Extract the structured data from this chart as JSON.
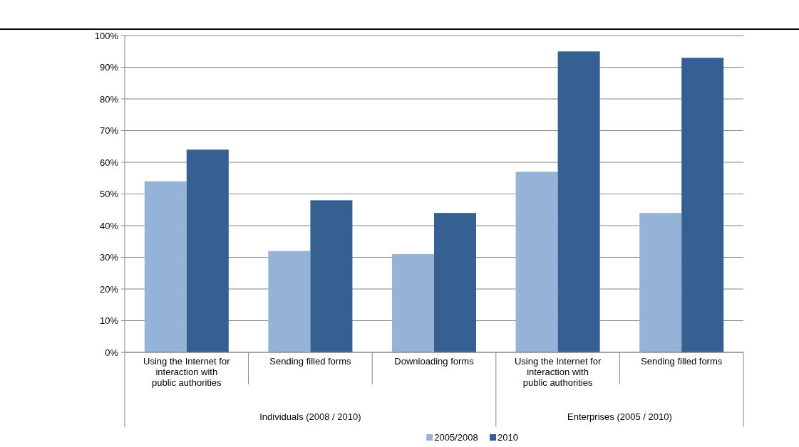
{
  "chart_data": {
    "type": "bar",
    "categories": [
      "Using the Internet for interaction with public authorities",
      "Sending filled forms",
      "Downloading forms",
      "Using the Internet for interaction with public authorities",
      "Sending filled forms"
    ],
    "series": [
      {
        "name": "2005/2008",
        "color": "#95b3d7",
        "values": [
          54,
          32,
          31,
          57,
          44
        ]
      },
      {
        "name": "2010",
        "color": "#366092",
        "values": [
          64,
          48,
          44,
          95,
          93
        ]
      }
    ],
    "ylim": [
      0,
      100
    ],
    "yticks": [
      {
        "value": 0,
        "label": "0%"
      },
      {
        "value": 10,
        "label": "10%"
      },
      {
        "value": 20,
        "label": "20%"
      },
      {
        "value": 30,
        "label": "30%"
      },
      {
        "value": 40,
        "label": "40%"
      },
      {
        "value": 50,
        "label": "50%"
      },
      {
        "value": 60,
        "label": "60%"
      },
      {
        "value": 70,
        "label": "70%"
      },
      {
        "value": 80,
        "label": "80%"
      },
      {
        "value": 90,
        "label": "90%"
      },
      {
        "value": 100,
        "label": "100%"
      }
    ],
    "grid": "y",
    "legend": "bottom",
    "annotations": [
      "Individuals (2008 / 2010)",
      "Enterprises (2005 / 2010)"
    ]
  }
}
